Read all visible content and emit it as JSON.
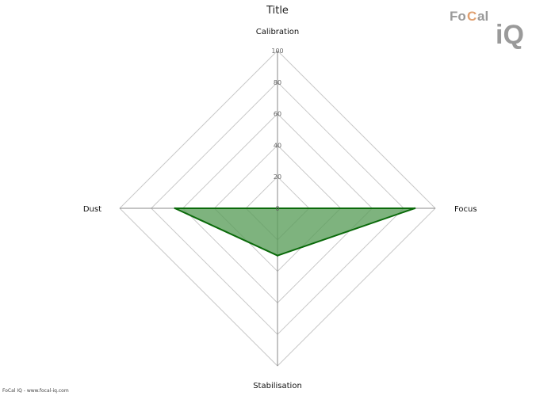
{
  "colors": {
    "grid": "#c8c8c8",
    "axis": "#888888",
    "series_fill": "#5a9e5a",
    "series_stroke": "#0a6a0a",
    "logo_text": "#9a9a9a",
    "logo_accent": "#e0a070"
  },
  "logo": {
    "text_fo": "Fo",
    "text_c": "C",
    "text_al": "al",
    "text_iq": "iQ"
  },
  "footer": {
    "text": "FoCal IQ - www.focal-iq.com"
  },
  "chart_data": {
    "type": "radar",
    "title": "Title",
    "axes": [
      "Calibration",
      "Focus",
      "Stabilisation",
      "Dust"
    ],
    "ticks": [
      0,
      20,
      40,
      60,
      80,
      100
    ],
    "range": [
      0,
      100
    ],
    "grid": true,
    "series": [
      {
        "values": [
          0,
          87,
          30,
          65
        ]
      }
    ]
  }
}
